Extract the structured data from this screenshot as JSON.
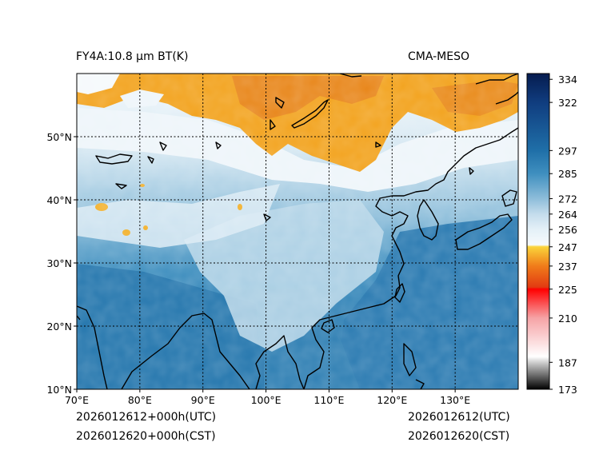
{
  "title_left": "FY4A:10.8 µm BT(K)",
  "title_right": "CMA-MESO",
  "footer": {
    "utc_forecast": "2026012612+000h(UTC)",
    "cst_forecast": "2026012620+000h(CST)",
    "utc_init": "2026012612(UTC)",
    "cst_init": "2026012620(CST)"
  },
  "map": {
    "lon_range": [
      70,
      140
    ],
    "lat_range": [
      10,
      60
    ],
    "lon_ticks": [
      {
        "value": 70,
        "label": "70°E"
      },
      {
        "value": 80,
        "label": "80°E"
      },
      {
        "value": 90,
        "label": "90°E"
      },
      {
        "value": 100,
        "label": "100°E"
      },
      {
        "value": 110,
        "label": "110°E"
      },
      {
        "value": 120,
        "label": "120°E"
      },
      {
        "value": 130,
        "label": "130°E"
      }
    ],
    "lat_ticks": [
      {
        "value": 10,
        "label": "10°N"
      },
      {
        "value": 20,
        "label": "20°N"
      },
      {
        "value": 30,
        "label": "30°N"
      },
      {
        "value": 40,
        "label": "40°N"
      },
      {
        "value": 50,
        "label": "50°N"
      }
    ],
    "colors": {
      "cold_cloud": "#f2a21c",
      "very_cold": "#e8861a",
      "cool": "#e2eef5",
      "mid": "#9fc7dd",
      "warm": "#3f8fbf",
      "ocean": "#1f6fa8"
    }
  },
  "colorbar": {
    "min": 173,
    "max": 337,
    "ticks": [
      334,
      322,
      297,
      285,
      272,
      264,
      256,
      247,
      237,
      225,
      210,
      187,
      173
    ],
    "stops": [
      {
        "value": 173,
        "color": "#000000"
      },
      {
        "value": 187,
        "color": "#cfcfcf"
      },
      {
        "value": 190,
        "color": "#ffffff"
      },
      {
        "value": 210,
        "color": "#f6a3a6"
      },
      {
        "value": 225,
        "color": "#ff0000"
      },
      {
        "value": 226,
        "color": "#e23a12"
      },
      {
        "value": 237,
        "color": "#f07c1a"
      },
      {
        "value": 247,
        "color": "#fad43a"
      },
      {
        "value": 248,
        "color": "#f6fafc"
      },
      {
        "value": 256,
        "color": "#e4f0f7"
      },
      {
        "value": 264,
        "color": "#c4dcec"
      },
      {
        "value": 272,
        "color": "#8ebdda"
      },
      {
        "value": 285,
        "color": "#3f8fbf"
      },
      {
        "value": 297,
        "color": "#1f6fa8"
      },
      {
        "value": 322,
        "color": "#103d7f"
      },
      {
        "value": 337,
        "color": "#061c4f"
      }
    ]
  }
}
